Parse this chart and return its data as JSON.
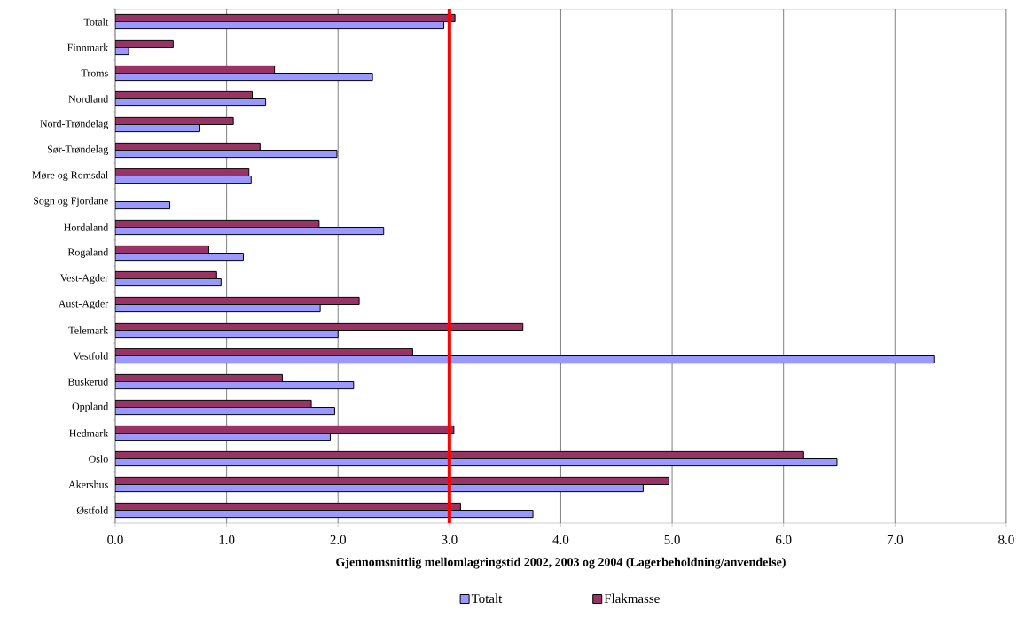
{
  "chart_data": {
    "type": "bar",
    "orientation": "horizontal",
    "xlabel": "Gjennomsnittlig mellomlagringstid 2002, 2003 og 2004 (Lagerbeholdning/anvendelse)",
    "categories": [
      "Totalt",
      "Finnmark",
      "Troms",
      "Nordland",
      "Nord-Trøndelag",
      "Sør-Trøndelag",
      "Møre og Romsdal",
      "Sogn og Fjordane",
      "Hordaland",
      "Rogaland",
      "Vest-Agder",
      "Aust-Agder",
      "Telemark",
      "Vestfold",
      "Buskerud",
      "Oppland",
      "Hedmark",
      "Oslo",
      "Akershus",
      "Østfold"
    ],
    "series": [
      {
        "name": "Totalt",
        "color": "#9999ff",
        "values": [
          2.95,
          0.12,
          2.31,
          1.35,
          0.76,
          1.99,
          1.22,
          0.49,
          2.41,
          1.15,
          0.95,
          1.84,
          2.0,
          7.35,
          2.14,
          1.97,
          1.93,
          6.48,
          4.74,
          3.75
        ]
      },
      {
        "name": "Flakmasse",
        "color": "#993366",
        "values": [
          3.05,
          0.52,
          1.43,
          1.23,
          1.06,
          1.3,
          1.2,
          null,
          1.83,
          0.84,
          0.91,
          2.19,
          3.66,
          2.67,
          1.5,
          1.76,
          3.04,
          6.18,
          4.97,
          3.1
        ]
      }
    ],
    "xlim": [
      0,
      8
    ],
    "xticks": [
      {
        "value": 0,
        "label": "0.0"
      },
      {
        "value": 1,
        "label": "1.0"
      },
      {
        "value": 2,
        "label": "2.0"
      },
      {
        "value": 3,
        "label": "3.0"
      },
      {
        "value": 4,
        "label": "4.0"
      },
      {
        "value": 5,
        "label": "5.0"
      },
      {
        "value": 6,
        "label": "6.0"
      },
      {
        "value": 7,
        "label": "7.0"
      },
      {
        "value": 8,
        "label": "8.0"
      }
    ],
    "ref_lines": [
      {
        "axis": "x",
        "value": 3,
        "color": "#ff0000"
      }
    ],
    "grid": "x",
    "legend": "bottom"
  }
}
